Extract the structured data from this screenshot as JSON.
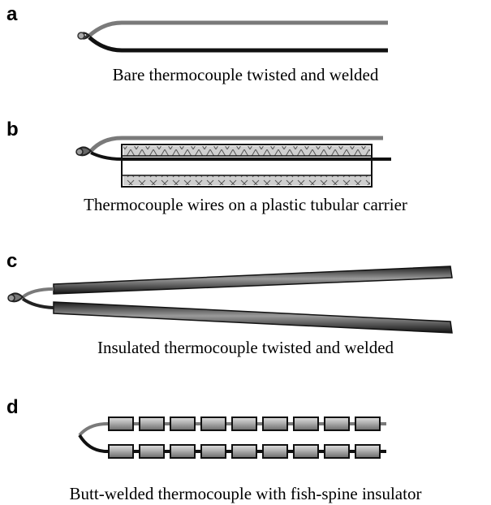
{
  "panels": [
    {
      "letter": "a",
      "caption": "Bare thermocouple twisted and welded"
    },
    {
      "letter": "b",
      "caption": "Thermocouple wires on a plastic tubular carrier"
    },
    {
      "letter": "c",
      "caption": "Insulated thermocouple twisted and welded"
    },
    {
      "letter": "d",
      "caption": "Butt-welded thermocouple with fish-spine insulator"
    }
  ],
  "colors": {
    "wire_dark": "#111111",
    "wire_light": "#7a7a7a",
    "carrier_fill": "#c9c9c9",
    "bead": "#b8b8b8"
  }
}
